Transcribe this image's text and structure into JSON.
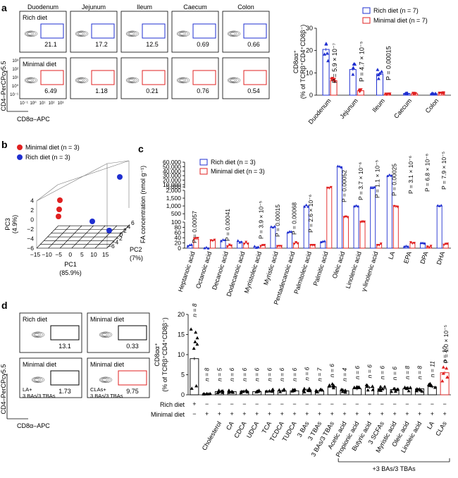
{
  "panel_letters": [
    "a",
    "b",
    "c",
    "d"
  ],
  "flow_a": {
    "columns": [
      "Duodenum",
      "Jejunum",
      "Ileum",
      "Caecum",
      "Colon"
    ],
    "rows": [
      {
        "label": "Rich diet",
        "values": [
          "21.1",
          "17.2",
          "12.5",
          "0.69",
          "0.66"
        ],
        "gate_color": "#1f2fd0"
      },
      {
        "label": "Minimal diet",
        "values": [
          "6.49",
          "1.18",
          "0.21",
          "0.76",
          "0.54"
        ],
        "gate_color": "#e02020"
      }
    ],
    "y_axis_label": "CD4–PerCPcy5.5",
    "x_axis_label": "CD8α–APC",
    "y_ticks": [
      "10³",
      "10²",
      "10¹",
      "10⁰",
      "10⁻¹"
    ],
    "x_ticks": [
      "10⁻¹",
      "10⁰",
      "10¹",
      "10²",
      "10³"
    ]
  },
  "flow_d": {
    "cells": [
      {
        "label": "Rich diet",
        "value": "13.1",
        "gate_color": "#000000"
      },
      {
        "label": "Minimal diet",
        "value": "0.33",
        "gate_color": "#000000"
      },
      {
        "label": "Minimal diet",
        "value": "1.73",
        "gate_color": "#000000",
        "sub": "LA+\n3 BAs/3 TBAs"
      },
      {
        "label": "Minimal diet",
        "value": "9.75",
        "gate_color": "#e02020",
        "sub": "CLAs+\n3 BAs/3 TBAs"
      }
    ],
    "y_axis_label": "CD4–PerCPcy5.5",
    "x_axis_label": "CD8α–APC"
  },
  "pca_b": {
    "legend": [
      {
        "name": "Minimal diet (n = 3)",
        "color": "#e02020"
      },
      {
        "name": "Rich diet (n = 3)",
        "color": "#1f2fd0"
      }
    ],
    "axis_pc1": "PC1",
    "axis_pc1_pct": "(85.9%)",
    "axis_pc2": "PC2",
    "axis_pc2_pct": "(7%)",
    "axis_pc3": "PC3",
    "axis_pc3_pct": "(4.9%)",
    "pc1_ticks": [
      "−15",
      "−10",
      "−5",
      "0",
      "5",
      "10",
      "15"
    ],
    "pc2_ticks": [
      "−6",
      "−4",
      "−2",
      "0",
      "2",
      "4",
      "6"
    ],
    "pc3_ticks": [
      "−6",
      "−4",
      "−2",
      "0",
      "2",
      "4"
    ]
  },
  "colors": {
    "rich": "#1f2fd0",
    "minimal": "#e02020",
    "black": "#000000"
  },
  "chart_data": [
    {
      "id": "a_bar",
      "type": "bar",
      "categories": [
        "Duodenum",
        "Jejunum",
        "Ileum",
        "Caecum",
        "Colon"
      ],
      "series": [
        {
          "name": "Rich diet (n = 7)",
          "values": [
            20.5,
            11.5,
            9.5,
            0.8,
            0.7
          ]
        },
        {
          "name": "Minimal diet (n = 7)",
          "values": [
            6.5,
            2.0,
            0.5,
            0.7,
            0.9
          ]
        }
      ],
      "ylim": [
        0,
        30
      ],
      "yticks": [
        0,
        10,
        20,
        30
      ],
      "ylabel": "CD8αα⁺ (% of TCRβ⁺CD4⁺CD8β⁻)",
      "p_values": [
        "P = 5.9 × 10⁻⁷",
        "P = 4.7 × 10⁻⁵",
        "P = 0.00015"
      ]
    },
    {
      "id": "c_bar",
      "type": "bar",
      "categories": [
        "Heptanoic acid",
        "Octanoic acid",
        "Decanoic acid",
        "Dodecanoic acid",
        "Myristoleic acid",
        "Myristic acid",
        "Pentadecanoic acid",
        "Palmitoleic acid",
        "Palmitic acid",
        "Oleic acid",
        "Linolenic acid",
        "γ-linolenic acid",
        "LA",
        "EPA",
        "DPA",
        "DHA"
      ],
      "series": [
        {
          "name": "Rich diet (n = 3)",
          "values": [
            10,
            1,
            30,
            25,
            5,
            80,
            60,
            1000,
            25,
            50000,
            1000,
            5000,
            30000,
            6,
            20,
            1000
          ]
        },
        {
          "name": "Minimal diet (n = 3)",
          "values": [
            35,
            30,
            10,
            20,
            10,
            10,
            20,
            15,
            4000,
            300,
            100,
            15,
            1000,
            20,
            5,
            15
          ]
        }
      ],
      "ylabel": "FA concentration (nmol g⁻¹)",
      "yticks": [
        "0",
        "20",
        "40",
        "60",
        "80",
        "100",
        "500",
        "1,000",
        "1,500",
        "2,000",
        "5,000",
        "10,000",
        "20,000",
        "30,000",
        "40,000",
        "50,000",
        "60,000"
      ],
      "p_values": [
        "P = 0.00057",
        "P = 0.00041",
        "P = 3.9 × 10⁻⁵",
        "P = 0.00015",
        "P = 0.00068",
        "P = 2.6 × 10⁻⁶",
        "P = 0.00052",
        "P = 3.7 × 10⁻⁶",
        "P = 1.1 × 10⁻⁵",
        "P = 0.00025",
        "P = 3.1 × 10⁻⁶",
        "P = 6.8 × 10⁻⁶",
        "P = 7.9 × 10⁻⁵"
      ]
    },
    {
      "id": "d_bar",
      "type": "bar",
      "categories": [
        "",
        "",
        "Cholesterol",
        "CA",
        "CDCA",
        "UDCA",
        "TCA",
        "TCDCA",
        "TUDCA",
        "3 BAs",
        "3 TBAs",
        "3 BAs/3 TBAs",
        "Acetic acid",
        "Propionic acid",
        "Butyric acid",
        "3 SCFAs",
        "Myristic acid",
        "Oleic acid",
        "Linoleic acid",
        "LA",
        "CLAs"
      ],
      "values": [
        9.0,
        0.3,
        0.8,
        0.8,
        0.9,
        0.8,
        1.0,
        1.0,
        1.0,
        1.2,
        1.0,
        2.0,
        1.0,
        1.5,
        1.8,
        1.5,
        1.3,
        1.5,
        1.5,
        2.0,
        5.5
      ],
      "n_labels": [
        "n = 8",
        "n = 8",
        "n = 5",
        "n = 6",
        "n = 6",
        "n = 6",
        "n = 6",
        "n = 6",
        "n = 6",
        "n = 6",
        "n = 7",
        "n = 6",
        "n = 4",
        "n = 6",
        "n = 6",
        "n = 6",
        "n = 6",
        "n = 8",
        "n = 8",
        "n = 11",
        "n = 10"
      ],
      "rich_diet_row": [
        "+",
        "−",
        "−",
        "−",
        "−",
        "−",
        "−",
        "−",
        "−",
        "−",
        "−",
        "−",
        "−",
        "−",
        "−",
        "−",
        "−",
        "−",
        "−",
        "−",
        "−"
      ],
      "minimal_diet_row": [
        "−",
        "+",
        "+",
        "+",
        "+",
        "+",
        "+",
        "+",
        "+",
        "+",
        "+",
        "+",
        "+",
        "+",
        "+",
        "+",
        "+",
        "+",
        "+",
        "+",
        "+"
      ],
      "row_labels": [
        "Rich diet",
        "Minimal diet"
      ],
      "bracket_label": "+3 BAs/3 TBAs",
      "p_value": "P = 1.0 × 10⁻⁵",
      "ylabel": "CD8αα⁺ (% of TCRβ⁺CD4⁺CD8β⁻)",
      "ylim": [
        0,
        20
      ],
      "yticks": [
        0,
        5,
        10,
        15,
        20
      ]
    }
  ]
}
